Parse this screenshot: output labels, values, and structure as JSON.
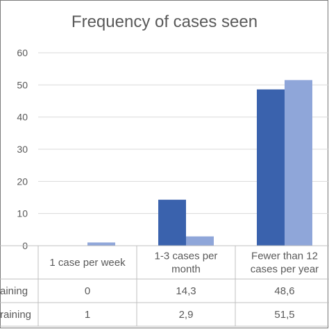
{
  "chart_data": {
    "type": "bar",
    "title": "Frequency of cases seen",
    "categories": [
      "1 case per week",
      "1-3 cases per month",
      "Fewer than 12 cases per year"
    ],
    "category_lines": [
      [
        "1 case per week"
      ],
      [
        "1-3 cases per",
        "month"
      ],
      [
        "Fewer than 12",
        "cases per year"
      ]
    ],
    "series": [
      {
        "name": "aining",
        "values": [
          0,
          14.3,
          48.6
        ],
        "labels": [
          "0",
          "14,3",
          "48,6"
        ],
        "color": "#3a62ad"
      },
      {
        "name": "raining",
        "values": [
          1,
          2.9,
          51.5
        ],
        "labels": [
          "1",
          "2,9",
          "51,5"
        ],
        "color": "#8fa6d9"
      }
    ],
    "y_ticks": [
      "0",
      "10",
      "20",
      "30",
      "40",
      "50",
      "60"
    ],
    "ylim": [
      0,
      60
    ],
    "grid": true,
    "legend": "data-table"
  }
}
